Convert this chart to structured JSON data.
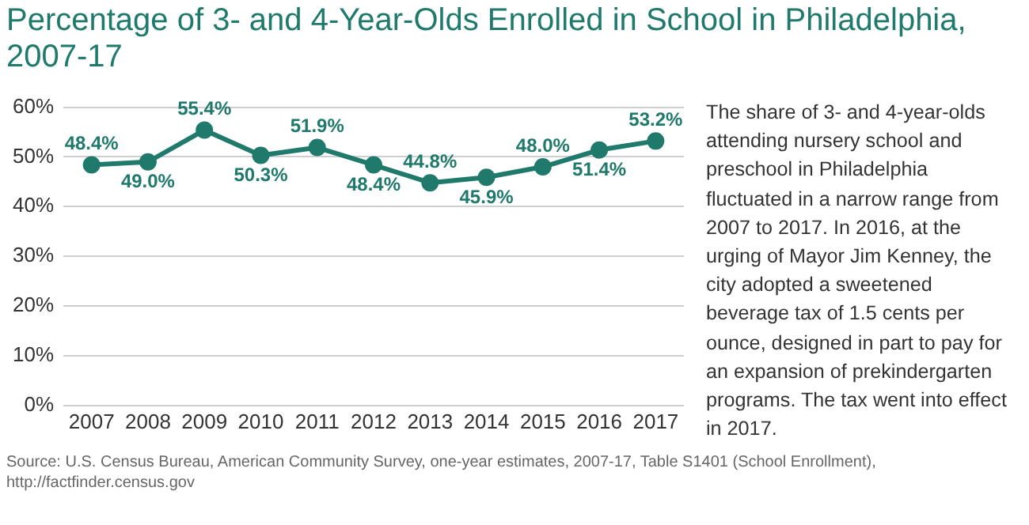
{
  "chart_data": {
    "type": "line",
    "title": "Percentage of 3- and 4-Year-Olds Enrolled in School in Philadelphia, 2007-17",
    "categories": [
      "2007",
      "2008",
      "2009",
      "2010",
      "2011",
      "2012",
      "2013",
      "2014",
      "2015",
      "2016",
      "2017"
    ],
    "series": [
      {
        "color": "#1f7a6c",
        "values": [
          48.4,
          49.0,
          55.4,
          50.3,
          51.9,
          48.4,
          44.8,
          45.9,
          48.0,
          51.4,
          53.2
        ],
        "value_labels": [
          "48.4%",
          "49.0%",
          "55.4%",
          "50.3%",
          "51.9%",
          "48.4%",
          "44.8%",
          "45.9%",
          "48.0%",
          "51.4%",
          "53.2%"
        ]
      }
    ],
    "ylim": [
      0,
      60
    ],
    "yticks": [
      {
        "value": 0,
        "label": "0%"
      },
      {
        "value": 10,
        "label": "10%"
      },
      {
        "value": 20,
        "label": "20%"
      },
      {
        "value": 30,
        "label": "30%"
      },
      {
        "value": 40,
        "label": "40%"
      },
      {
        "value": 50,
        "label": "50%"
      },
      {
        "value": 60,
        "label": "60%"
      }
    ],
    "grid": "y",
    "legend": false,
    "marker": "circle",
    "line_style": "solid",
    "annotations": [
      "The share of 3- and 4-year-olds attending nursery school and preschool in Philadelphia fluctuated in a narrow range from 2007 to 2017. In 2016, at the urging of Mayor Jim Kenney, the city adopted a sweetened beverage tax of 1.5 cents per ounce, designed in part to pay for an expansion of prekindergarten programs. The tax went into effect in 2017.",
      "Source: U.S. Census Bureau, American Community Survey, one-year estimates, 2007-17, Table S1401 (School Enrollment), http://factfinder.census.gov"
    ]
  }
}
